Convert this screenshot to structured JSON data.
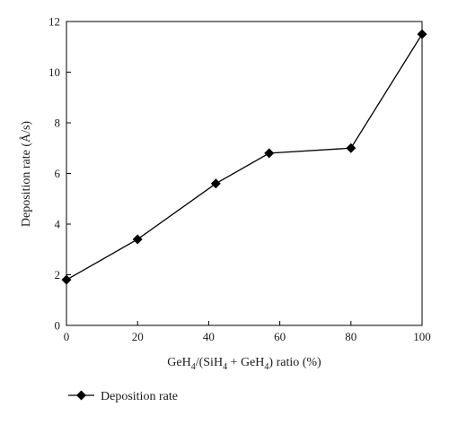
{
  "chart_data": {
    "type": "line",
    "xlabel": "GeH4/(SiH4 + GeH4) ratio (%)",
    "xlabel_parts": {
      "a": "GeH",
      "a_sub": "4",
      "b": "/(SiH",
      "b_sub": "4",
      "c": " + GeH",
      "c_sub": "4",
      "d": ") ratio (%)"
    },
    "ylabel": "Deposition rate (Å/s)",
    "xlim": [
      0,
      100
    ],
    "ylim": [
      0,
      12
    ],
    "x_ticks": [
      0,
      20,
      40,
      60,
      80,
      100
    ],
    "y_ticks": [
      0,
      2,
      4,
      6,
      8,
      10,
      12
    ],
    "grid": false,
    "legend_position": "bottom-left",
    "series": [
      {
        "name": "Deposition rate",
        "marker": "diamond",
        "color": "#000000",
        "x": [
          0,
          20,
          42,
          57,
          80,
          100
        ],
        "y": [
          1.8,
          3.4,
          5.6,
          6.8,
          7.0,
          11.5
        ]
      }
    ]
  }
}
